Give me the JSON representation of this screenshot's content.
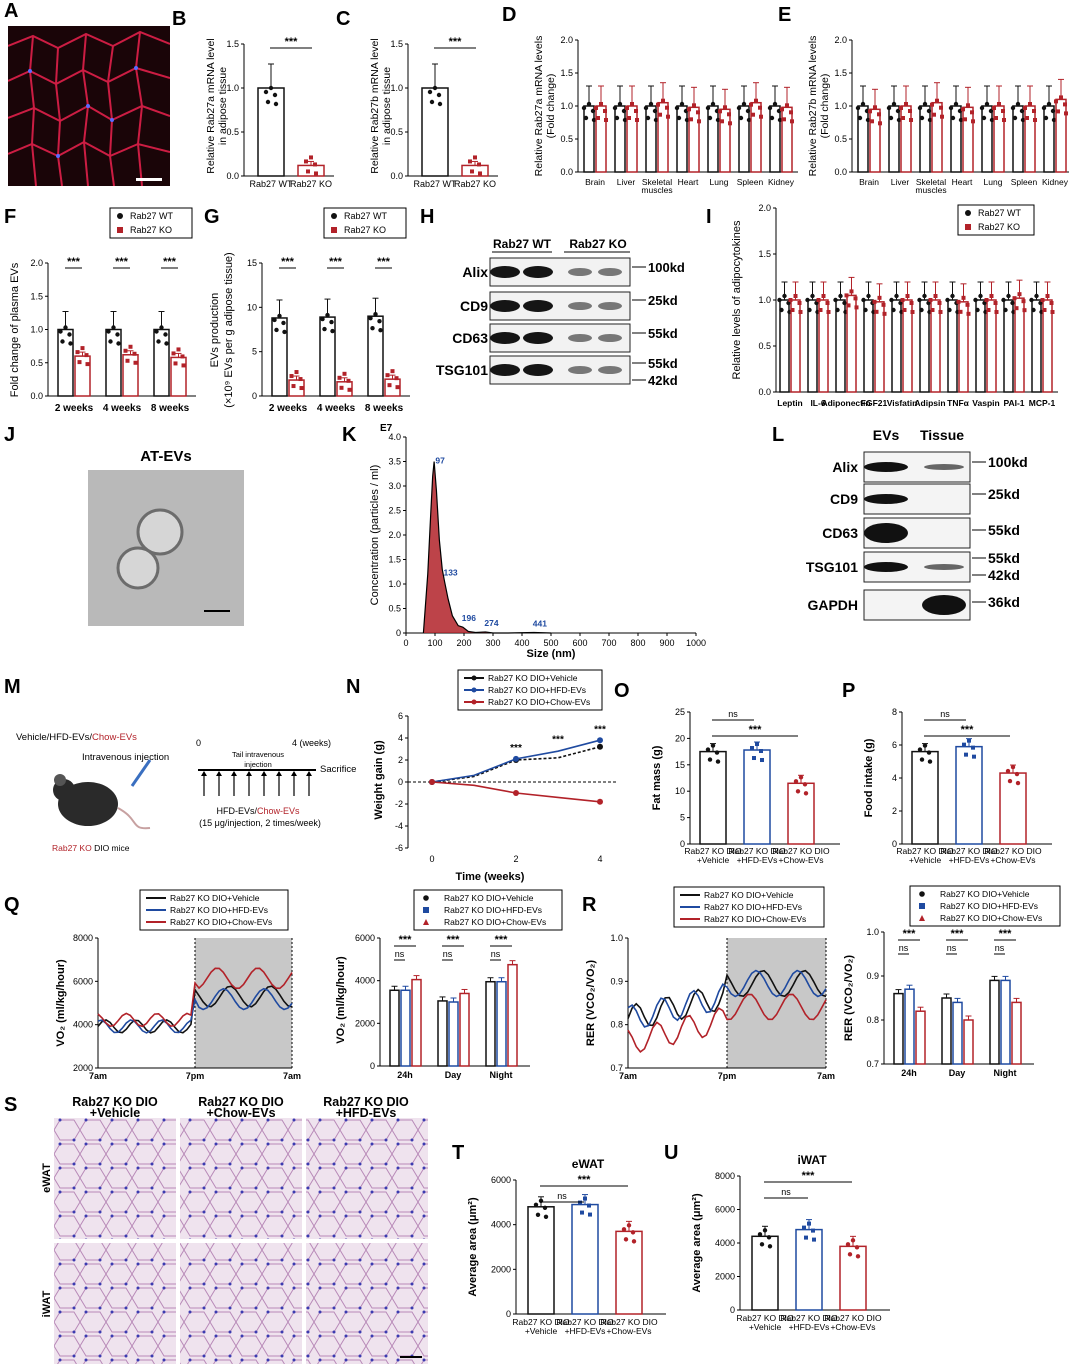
{
  "panel_letters": [
    "A",
    "B",
    "C",
    "D",
    "E",
    "F",
    "G",
    "H",
    "I",
    "J",
    "K",
    "L",
    "M",
    "N",
    "O",
    "P",
    "Q",
    "R",
    "S",
    "T",
    "U"
  ],
  "colors": {
    "wt": "#111111",
    "ko": "#b22229",
    "vehicle": "#111111",
    "hfd": "#1f4aa0",
    "chow": "#b22229",
    "gray_band": "#c8c8c8"
  },
  "stats": {
    "p3": "***",
    "ns": "ns"
  },
  "panel_B": {
    "ylabel_1": "Relative Rab27a mRNA level",
    "ylabel_2": "in adipose tissue",
    "categories": [
      "Rab27 WT",
      "Rab27 KO"
    ],
    "ticks": [
      "0.0",
      "0.5",
      "1.0",
      "1.5"
    ],
    "chart_data": {
      "type": "bar",
      "categories": [
        "Rab27 WT",
        "Rab27 KO"
      ],
      "values": [
        1.0,
        0.12
      ],
      "ylim": [
        0,
        1.5
      ]
    }
  },
  "panel_C": {
    "ylabel_1": "Relative Rab27b mRNA level",
    "ylabel_2": "in adipose tissue",
    "categories": [
      "Rab27 WT",
      "Rab27 KO"
    ],
    "ticks": [
      "0.0",
      "0.5",
      "1.0",
      "1.5"
    ],
    "chart_data": {
      "type": "bar",
      "categories": [
        "Rab27 WT",
        "Rab27 KO"
      ],
      "values": [
        1.0,
        0.12
      ],
      "ylim": [
        0,
        1.5
      ]
    }
  },
  "panel_D": {
    "ylabel_1": "Relative Rab27a mRNA levels",
    "ylabel_2": "(Fold change)",
    "ticks": [
      "0.0",
      "0.5",
      "1.0",
      "1.5",
      "2.0"
    ],
    "categories": [
      "Brain",
      "Liver",
      "Skeletal muscles",
      "Heart",
      "Lung",
      "Spleen",
      "Kidney"
    ],
    "chart_data": {
      "type": "bar",
      "categories": [
        "Brain",
        "Liver",
        "Skeletal muscles",
        "Heart",
        "Lung",
        "Spleen",
        "Kidney"
      ],
      "series": [
        {
          "name": "Rab27 WT",
          "values": [
            1.0,
            1.0,
            1.0,
            1.0,
            1.0,
            1.0,
            1.0
          ]
        },
        {
          "name": "Rab27 KO",
          "values": [
            1.0,
            1.0,
            1.05,
            0.98,
            0.95,
            1.05,
            0.98
          ]
        }
      ],
      "ylim": [
        0,
        2.0
      ]
    }
  },
  "panel_E": {
    "ylabel_1": "Relative Rab27b mRNA levels",
    "ylabel_2": "(Fold change)",
    "ticks": [
      "0.0",
      "0.5",
      "1.0",
      "1.5",
      "2.0"
    ],
    "categories": [
      "Brain",
      "Liver",
      "Skeletal muscles",
      "Heart",
      "Lung",
      "Spleen",
      "Kidney"
    ],
    "chart_data": {
      "type": "bar",
      "categories": [
        "Brain",
        "Liver",
        "Skeletal muscles",
        "Heart",
        "Lung",
        "Spleen",
        "Kidney"
      ],
      "series": [
        {
          "name": "Rab27 WT",
          "values": [
            1.0,
            1.0,
            1.0,
            1.0,
            1.0,
            1.0,
            1.0
          ]
        },
        {
          "name": "Rab27 KO",
          "values": [
            0.95,
            1.0,
            1.05,
            0.98,
            1.0,
            1.0,
            1.1
          ]
        }
      ],
      "ylim": [
        0,
        2.0
      ]
    }
  },
  "panel_F": {
    "ylabel": "Fold change of plasma EVs",
    "ticks": [
      "0.0",
      "0.5",
      "1.0",
      "1.5",
      "2.0"
    ],
    "categories": [
      "2 weeks",
      "4 weeks",
      "8 weeks"
    ],
    "legend": [
      "Rab27 WT",
      "Rab27 KO"
    ],
    "chart_data": {
      "type": "bar",
      "categories": [
        "2 weeks",
        "4 weeks",
        "8 weeks"
      ],
      "series": [
        {
          "name": "Rab27 WT",
          "values": [
            1.0,
            1.0,
            1.0
          ]
        },
        {
          "name": "Rab27 KO",
          "values": [
            0.6,
            0.62,
            0.58
          ]
        }
      ],
      "ylim": [
        0,
        2.0
      ]
    }
  },
  "panel_G": {
    "ylabel_1": "EVs production",
    "ylabel_2": "(×10⁹ EVs per g adipose tissue)",
    "ticks": [
      "0",
      "5",
      "10",
      "15"
    ],
    "categories": [
      "2 weeks",
      "4 weeks",
      "8 weeks"
    ],
    "legend": [
      "Rab27 WT",
      "Rab27 KO"
    ],
    "chart_data": {
      "type": "bar",
      "categories": [
        "2 weeks",
        "4 weeks",
        "8 weeks"
      ],
      "series": [
        {
          "name": "Rab27 WT",
          "values": [
            8.8,
            8.9,
            9.0
          ]
        },
        {
          "name": "Rab27 KO",
          "values": [
            1.8,
            1.6,
            1.9
          ]
        }
      ],
      "ylim": [
        0,
        15
      ]
    }
  },
  "panel_H": {
    "groups": [
      "Rab27 WT",
      "Rab27 KO"
    ],
    "rows": [
      "Alix",
      "CD9",
      "CD63",
      "TSG101"
    ],
    "sizes": [
      "100kd",
      "25kd",
      "55kd",
      "55kd",
      "42kd"
    ]
  },
  "panel_I": {
    "ylabel": "Relative levels of adipocytokines",
    "ticks": [
      "0.0",
      "0.5",
      "1.0",
      "1.5",
      "2.0"
    ],
    "legend": [
      "Rab27 WT",
      "Rab27 KO"
    ],
    "categories": [
      "Leptin",
      "IL-6",
      "Adiponectin",
      "FGF21",
      "Visfatin",
      "Adipsin",
      "TNFα",
      "Vaspin",
      "PAI-1",
      "MCP-1"
    ],
    "chart_data": {
      "type": "bar",
      "categories": [
        "Leptin",
        "IL-6",
        "Adiponectin",
        "FGF21",
        "Visfatin",
        "Adipsin",
        "TNFα",
        "Vaspin",
        "PAI-1",
        "MCP-1"
      ],
      "series": [
        {
          "name": "Rab27 WT",
          "values": [
            1,
            1,
            1,
            1,
            1,
            1,
            1,
            1,
            1,
            1
          ]
        },
        {
          "name": "Rab27 KO",
          "values": [
            1.0,
            1.0,
            1.05,
            0.98,
            1.0,
            1.0,
            0.98,
            1.0,
            1.02,
            1.0
          ]
        }
      ],
      "ylim": [
        0,
        2.0
      ]
    }
  },
  "panel_J": {
    "title": "AT-EVs"
  },
  "panel_K": {
    "ylabel": "Concentration (particles / ml)",
    "exponent": "E7",
    "xlabel": "Size (nm)",
    "yticks": [
      "0",
      "0.5",
      "1.0",
      "1.5",
      "2.0",
      "2.5",
      "3.0",
      "3.5",
      "4.0"
    ],
    "xticks": [
      "0",
      "100",
      "200",
      "300",
      "400",
      "500",
      "600",
      "700",
      "800",
      "900",
      "1000"
    ],
    "peaks": [
      "97",
      "133",
      "196",
      "274",
      "441"
    ],
    "chart_data": {
      "type": "line",
      "x": [
        60,
        75,
        85,
        92,
        97,
        105,
        115,
        125,
        133,
        145,
        160,
        180,
        196,
        215,
        240,
        274,
        300,
        350,
        441,
        500
      ],
      "y": [
        0,
        1.2,
        2.4,
        3.2,
        3.5,
        2.9,
        1.9,
        1.3,
        1.05,
        0.7,
        0.35,
        0.15,
        0.12,
        0.03,
        0.01,
        0.02,
        0.0,
        0.0,
        0.01,
        0.0
      ],
      "xlim": [
        0,
        1000
      ],
      "ylim": [
        0,
        4.0
      ]
    }
  },
  "panel_L": {
    "groups": [
      "EVs",
      "Tissue"
    ],
    "rows": [
      "Alix",
      "CD9",
      "CD63",
      "TSG101",
      "GAPDH"
    ],
    "sizes": [
      "100kd",
      "25kd",
      "55kd",
      "55kd",
      "42kd",
      "36kd"
    ]
  },
  "panel_M": {
    "treatment_prefix": "Vehicle/HFD-EVs/",
    "treatment_chow": "Chow-EVs",
    "route": "Intravenous injection",
    "mouse_label_ko": "Rab27 KO",
    "mouse_label_rest": "DIO mice",
    "t0": "0",
    "t4": "4 (weeks)",
    "injection": "Tail intravenous injection",
    "sacrifice": "Sacrifice",
    "dose_prefix": "HFD-EVs/",
    "dose_chow": "Chow-EVs",
    "dose": "(15 μg/injection, 2 times/week)"
  },
  "groups3": [
    "Rab27 KO DIO+Vehicle",
    "Rab27 KO DIO+HFD-EVs",
    "Rab27 KO DIO+Chow-EVs"
  ],
  "xcats3": [
    [
      "Rab27 KO DIO",
      "+Vehicle"
    ],
    [
      "Rab27 KO DIO",
      "+HFD-EVs"
    ],
    [
      "Rab27 KO DIO",
      "+Chow-EVs"
    ]
  ],
  "xcats3_alt": [
    [
      "Rab27 KO DIO",
      "+Vehicle"
    ],
    [
      "Rab27 KO DIO",
      "+HFD-EVs"
    ],
    [
      "Rab27 KO DIO",
      "+Chow-EVs"
    ]
  ],
  "panel_N": {
    "ylabel": "Weight gain (g)",
    "xlabel": "Time (weeks)",
    "yticks": [
      "-6",
      "-4",
      "-2",
      "0",
      "2",
      "4",
      "6"
    ],
    "xticks": [
      "0",
      "2",
      "4"
    ],
    "chart_data": {
      "type": "line",
      "x": [
        0,
        1,
        2,
        3,
        4
      ],
      "series": [
        {
          "name": "Rab27 KO DIO+Vehicle",
          "values": [
            0,
            0.5,
            2.0,
            2.2,
            3.2
          ]
        },
        {
          "name": "Rab27 KO DIO+HFD-EVs",
          "values": [
            0,
            0.6,
            2.1,
            2.8,
            3.8
          ]
        },
        {
          "name": "Rab27 KO DIO+Chow-EVs",
          "values": [
            0,
            -0.3,
            -1.0,
            -1.4,
            -1.8
          ]
        }
      ],
      "ylim": [
        -6,
        6
      ]
    }
  },
  "panel_O": {
    "ylabel": "Fat mass (g)",
    "ticks": [
      "0",
      "5",
      "10",
      "15",
      "20",
      "25"
    ],
    "chart_data": {
      "type": "bar",
      "categories": [
        "Rab27 KO DIO+Vehicle",
        "Rab27 KO DIO+HFD-EVs",
        "Rab27 KO DIO+Chow-EVs"
      ],
      "values": [
        17.5,
        17.8,
        11.5
      ],
      "ylim": [
        0,
        25
      ]
    }
  },
  "panel_P": {
    "ylabel": "Food intake (g)",
    "ticks": [
      "0",
      "2",
      "4",
      "6",
      "8"
    ],
    "chart_data": {
      "type": "bar",
      "categories": [
        "Rab27 KO DIO+Vehicle",
        "Rab27 KO DIO+HFD-EVs",
        "Rab27 KO DIO+Chow-EVs"
      ],
      "values": [
        5.6,
        5.9,
        4.3
      ],
      "ylim": [
        0,
        8
      ]
    }
  },
  "panel_Q": {
    "ylabel": "VO₂ (ml/kg/hour)",
    "yticks": [
      "2000",
      "4000",
      "6000",
      "8000"
    ],
    "xticks": [
      "7am",
      "7pm",
      "7am"
    ],
    "bar_ticks": [
      "0",
      "2000",
      "4000",
      "6000"
    ],
    "bar_cats": [
      "24h",
      "Day",
      "Night"
    ],
    "chart_data": {
      "type": "bar",
      "categories": [
        "24h",
        "Day",
        "Night"
      ],
      "series": [
        {
          "name": "Rab27 KO DIO+Vehicle",
          "values": [
            3550,
            3050,
            3950
          ]
        },
        {
          "name": "Rab27 KO DIO+HFD-EVs",
          "values": [
            3550,
            3000,
            3950
          ]
        },
        {
          "name": "Rab27 KO DIO+Chow-EVs",
          "values": [
            4050,
            3400,
            4750
          ]
        }
      ],
      "ylim": [
        0,
        6000
      ]
    }
  },
  "panel_R": {
    "ylabel": "RER (VCO₂/VO₂)",
    "yticks": [
      "0.7",
      "0.8",
      "0.9",
      "1.0"
    ],
    "xticks": [
      "7am",
      "7pm",
      "7am"
    ],
    "bar_cats": [
      "24h",
      "Day",
      "Night"
    ],
    "chart_data": {
      "type": "bar",
      "categories": [
        "24h",
        "Day",
        "Night"
      ],
      "series": [
        {
          "name": "Rab27 KO DIO+Vehicle",
          "values": [
            0.86,
            0.85,
            0.89
          ]
        },
        {
          "name": "Rab27 KO DIO+HFD-EVs",
          "values": [
            0.87,
            0.84,
            0.89
          ]
        },
        {
          "name": "Rab27 KO DIO+Chow-EVs",
          "values": [
            0.82,
            0.8,
            0.84
          ]
        }
      ],
      "ylim": [
        0.7,
        1.0
      ]
    }
  },
  "panel_S": {
    "cols": [
      [
        "Rab27 KO DIO",
        "+Vehicle"
      ],
      [
        "Rab27 KO DIO",
        "+Chow-EVs"
      ],
      [
        "Rab27 KO DIO",
        "+HFD-EVs"
      ]
    ],
    "rows": [
      "eWAT",
      "iWAT"
    ]
  },
  "panel_T": {
    "title": "eWAT",
    "ylabel": "Average area (μm²)",
    "ticks": [
      "0",
      "2000",
      "4000",
      "6000"
    ],
    "chart_data": {
      "type": "bar",
      "categories": [
        "Rab27 KO DIO+Vehicle",
        "Rab27 KO DIO+HFD-EVs",
        "Rab27 KO DIO+Chow-EVs"
      ],
      "values": [
        4800,
        4900,
        3700
      ],
      "ylim": [
        0,
        6000
      ]
    }
  },
  "panel_U": {
    "title": "iWAT",
    "ylabel": "Average area (μm²)",
    "ticks": [
      "0",
      "2000",
      "4000",
      "6000",
      "8000"
    ],
    "chart_data": {
      "type": "bar",
      "categories": [
        "Rab27 KO DIO+Vehicle",
        "Rab27 KO DIO+HFD-EVs",
        "Rab27 KO DIO+Chow-EVs"
      ],
      "values": [
        4400,
        4800,
        3800
      ],
      "ylim": [
        0,
        8000
      ]
    }
  }
}
